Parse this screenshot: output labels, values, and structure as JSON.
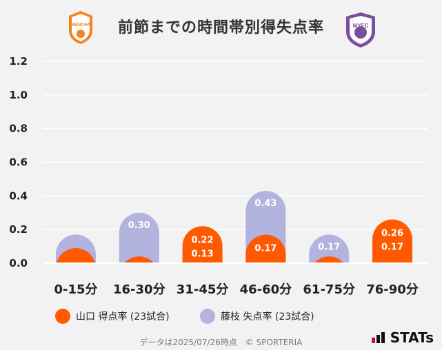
{
  "title": "前節までの時間帯別得失点率",
  "logos": {
    "left": {
      "icon": "renofa-yamaguchi-crest-icon",
      "text": "RENOFA",
      "color": "#f5821f"
    },
    "right": {
      "icon": "fujieda-myfc-crest-icon",
      "text": "MYFC",
      "color": "#7b4f9e"
    }
  },
  "chart_data": {
    "type": "bar",
    "categories": [
      "0-15分",
      "16-30分",
      "31-45分",
      "46-60分",
      "61-75分",
      "76-90分"
    ],
    "ylim": [
      0,
      1.2
    ],
    "yticks": [
      "0.0",
      "0.2",
      "0.4",
      "0.6",
      "0.8",
      "1.0",
      "1.2"
    ],
    "grid": true,
    "legend_position": "bottom",
    "series": [
      {
        "name": "山口 得点率 (23試合)",
        "color": "#ff5a00",
        "values": [
          0.09,
          0.04,
          0.22,
          0.17,
          0.04,
          0.26
        ],
        "labels": [
          "",
          "",
          "0.22",
          "0.17",
          "",
          "0.26"
        ]
      },
      {
        "name": "藤枝 失点率 (23試合)",
        "color": "#b3b3e0",
        "values": [
          0.17,
          0.3,
          0.13,
          0.43,
          0.17,
          0.17
        ],
        "labels": [
          "",
          "0.30",
          "0.13",
          "0.43",
          "0.17",
          "0.17"
        ]
      }
    ]
  },
  "footer": "データは2025/07/26時点　© SPORTERIA",
  "brand": "STATs"
}
